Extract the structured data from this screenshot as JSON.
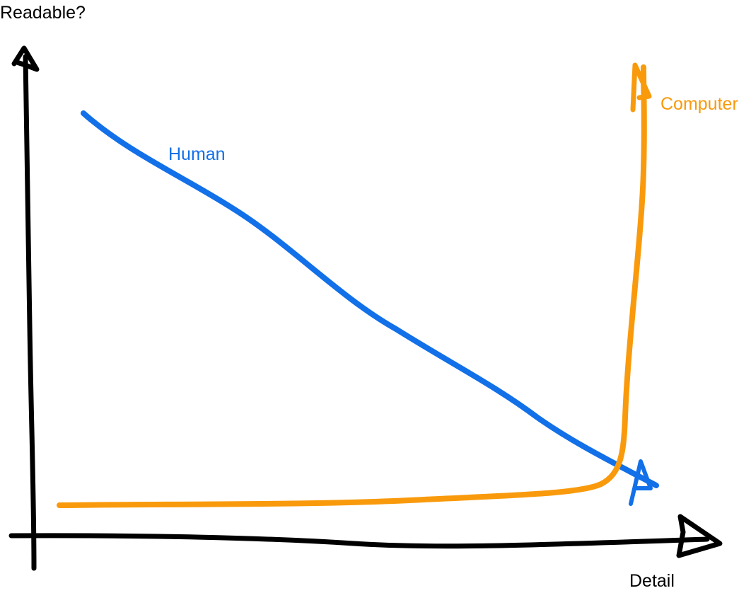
{
  "axes": {
    "y_label": "Readable?",
    "x_label": "Detail"
  },
  "curves": [
    {
      "label": "Human"
    },
    {
      "label": "Computer"
    }
  ]
}
